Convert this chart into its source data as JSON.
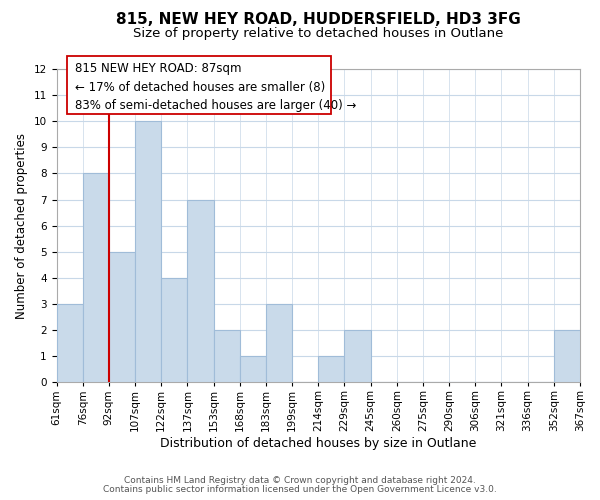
{
  "title": "815, NEW HEY ROAD, HUDDERSFIELD, HD3 3FG",
  "subtitle": "Size of property relative to detached houses in Outlane",
  "xlabel": "Distribution of detached houses by size in Outlane",
  "ylabel": "Number of detached properties",
  "footer_lines": [
    "Contains HM Land Registry data © Crown copyright and database right 2024.",
    "Contains public sector information licensed under the Open Government Licence v3.0."
  ],
  "bin_labels": [
    "61sqm",
    "76sqm",
    "92sqm",
    "107sqm",
    "122sqm",
    "137sqm",
    "153sqm",
    "168sqm",
    "183sqm",
    "199sqm",
    "214sqm",
    "229sqm",
    "245sqm",
    "260sqm",
    "275sqm",
    "290sqm",
    "306sqm",
    "321sqm",
    "336sqm",
    "352sqm",
    "367sqm"
  ],
  "bar_values": [
    3,
    8,
    5,
    10,
    4,
    7,
    2,
    1,
    3,
    0,
    1,
    2,
    0,
    0,
    0,
    0,
    0,
    0,
    0,
    2
  ],
  "bar_color": "#c9daea",
  "bar_edge_color": "#a0bcd8",
  "vline_x_bin": 2,
  "vline_color": "#cc0000",
  "annotation_line1": "815 NEW HEY ROAD: 87sqm",
  "annotation_line2": "← 17% of detached houses are smaller (8)",
  "annotation_line3": "83% of semi-detached houses are larger (40) →",
  "ylim": [
    0,
    12
  ],
  "yticks": [
    0,
    1,
    2,
    3,
    4,
    5,
    6,
    7,
    8,
    9,
    10,
    11,
    12
  ],
  "title_fontsize": 11,
  "subtitle_fontsize": 9.5,
  "xlabel_fontsize": 9,
  "ylabel_fontsize": 8.5,
  "tick_fontsize": 7.5,
  "annotation_fontsize": 8.5,
  "footer_fontsize": 6.5,
  "grid_color": "#c8d8e8",
  "background_color": "#ffffff"
}
